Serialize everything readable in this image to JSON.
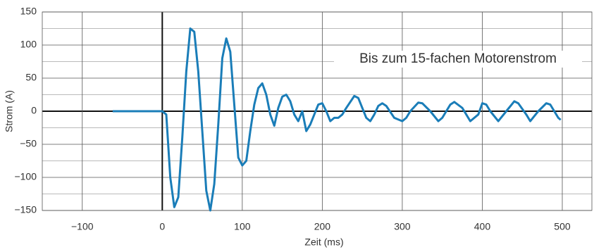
{
  "chart_data": {
    "type": "line",
    "xlabel": "Zeit (ms)",
    "ylabel": "Strom (A)",
    "annotation": "Bis zum 15-fachen Motorenstrom",
    "x": [
      -62,
      -40,
      -20,
      0,
      5,
      10,
      15,
      20,
      25,
      30,
      35,
      40,
      45,
      50,
      55,
      60,
      65,
      70,
      75,
      80,
      85,
      90,
      95,
      100,
      105,
      110,
      115,
      120,
      125,
      130,
      135,
      140,
      145,
      150,
      155,
      160,
      165,
      170,
      175,
      180,
      185,
      190,
      195,
      200,
      205,
      210,
      215,
      220,
      225,
      230,
      240,
      245,
      250,
      255,
      260,
      265,
      270,
      275,
      280,
      290,
      300,
      305,
      310,
      320,
      325,
      335,
      345,
      350,
      360,
      365,
      375,
      385,
      395,
      400,
      405,
      410,
      420,
      430,
      440,
      445,
      455,
      460,
      470,
      480,
      485,
      495,
      498
    ],
    "series": [
      {
        "name": "Strom",
        "color": "#1a7db8",
        "values": [
          0,
          0,
          0,
          0,
          -5,
          -100,
          -145,
          -130,
          -40,
          60,
          125,
          120,
          60,
          -30,
          -120,
          -150,
          -110,
          -20,
          80,
          110,
          90,
          10,
          -70,
          -82,
          -75,
          -30,
          10,
          35,
          42,
          25,
          -5,
          -22,
          5,
          22,
          25,
          15,
          -5,
          -15,
          0,
          -30,
          -20,
          -5,
          10,
          12,
          0,
          -15,
          -10,
          -10,
          -5,
          5,
          23,
          20,
          5,
          -10,
          -15,
          -5,
          8,
          12,
          8,
          -10,
          -15,
          -10,
          0,
          13,
          12,
          0,
          -15,
          -10,
          10,
          14,
          5,
          -15,
          -5,
          12,
          10,
          0,
          -15,
          0,
          15,
          12,
          -5,
          -15,
          0,
          12,
          10,
          -10,
          -13
        ]
      }
    ],
    "xlim": [
      -150,
      537
    ],
    "ylim": [
      -150,
      150
    ],
    "xticks": [
      {
        "value": -100,
        "label": "−100"
      },
      0,
      100,
      200,
      300,
      400,
      500
    ],
    "yticks": [
      {
        "value": -150,
        "label": "−150"
      },
      {
        "value": -100,
        "label": "−100"
      },
      {
        "value": -50,
        "label": "−50"
      },
      0,
      50,
      100,
      150
    ],
    "grid": true
  }
}
